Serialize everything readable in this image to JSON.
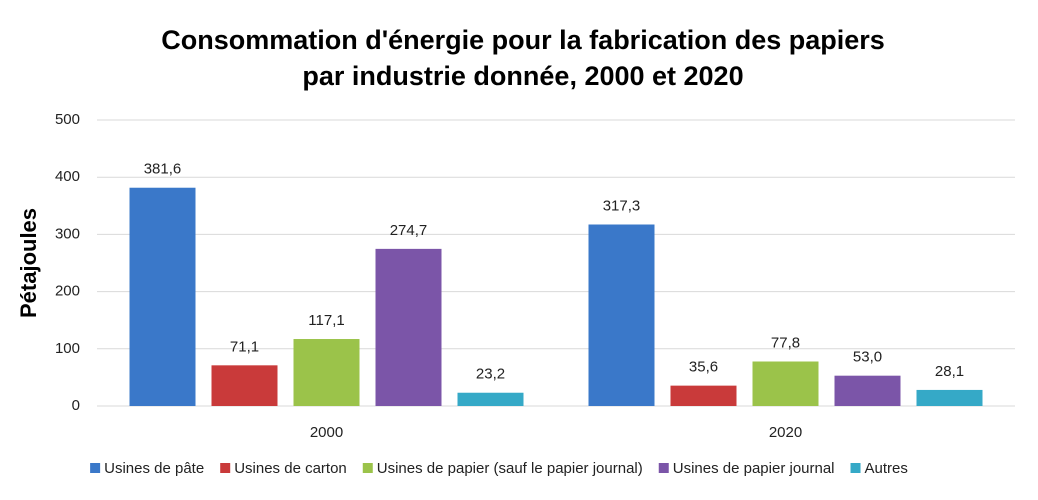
{
  "chart_data": {
    "type": "bar",
    "title": [
      "Consommation d'énergie pour la fabrication des papiers",
      "par industrie donnée, 2000 et 2020"
    ],
    "y_label": "Pétajoules",
    "categories": [
      "2000",
      "2020"
    ],
    "series": [
      {
        "name": "Usines de pâte",
        "color": "#3a78c9",
        "values": [
          381.6,
          317.3
        ],
        "value_labels": [
          "381,6",
          "317,3"
        ]
      },
      {
        "name": "Usines de carton",
        "color": "#c93a3a",
        "values": [
          71.1,
          35.6
        ],
        "value_labels": [
          "71,1",
          "35,6"
        ]
      },
      {
        "name": "Usines de papier (sauf le papier journal)",
        "color": "#9bc34a",
        "values": [
          117.1,
          77.8
        ],
        "value_labels": [
          "117,1",
          "77,8"
        ]
      },
      {
        "name": "Usines de papier journal",
        "color": "#7b55a8",
        "values": [
          274.7,
          53.0
        ],
        "value_labels": [
          "274,7",
          "53,0"
        ]
      },
      {
        "name": "Autres",
        "color": "#35a9c7",
        "values": [
          23.2,
          28.1
        ],
        "value_labels": [
          "23,2",
          "28,1"
        ]
      }
    ],
    "ylim": [
      0,
      500
    ],
    "yticks": [
      0,
      100,
      200,
      300,
      400,
      500
    ],
    "grid": true,
    "legend": "bottom"
  }
}
